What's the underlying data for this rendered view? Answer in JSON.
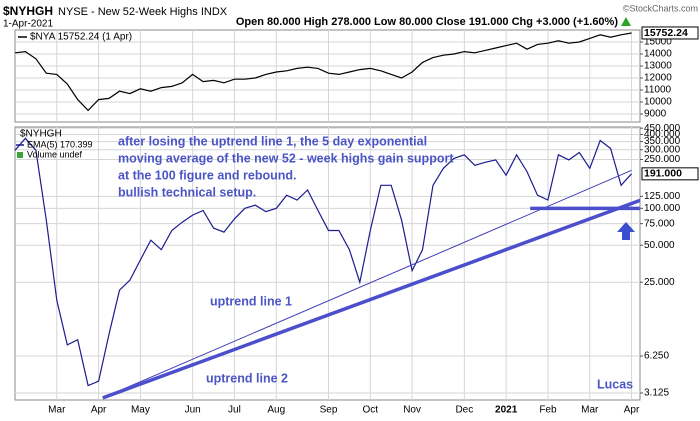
{
  "header": {
    "symbol": "$NYHGH",
    "description": "NYSE - New 52-Week Highs INDX",
    "date": "1-Apr-2021",
    "quote": "Open 80.000 High 278.000 Low 80.000 Close 191.000 Chg +3.000 (+1.60%)",
    "credit": "©StockCharts.com"
  },
  "chart_data": [
    {
      "type": "line",
      "series": [
        {
          "name": "$NYA 15752.24 (1 Apr)",
          "color": "#000000",
          "values": [
            14100,
            14200,
            13600,
            12400,
            12300,
            11500,
            10200,
            9300,
            10200,
            10300,
            10900,
            10700,
            11100,
            10900,
            11200,
            11300,
            11600,
            12300,
            11700,
            11800,
            11600,
            11900,
            11900,
            12000,
            12300,
            12500,
            12600,
            12800,
            12900,
            12800,
            12400,
            12300,
            12500,
            12700,
            12800,
            12600,
            12300,
            12000,
            12500,
            13300,
            13700,
            13900,
            14000,
            14200,
            14100,
            14300,
            14500,
            14700,
            14900,
            14400,
            14800,
            14900,
            15100,
            14900,
            15000,
            15300,
            15600,
            15400,
            15600,
            15752.24
          ]
        }
      ],
      "ylim": [
        8330,
        16000
      ],
      "yticks": [
        9000,
        10000,
        11000,
        12000,
        13000,
        14000,
        15000
      ],
      "grid": true
    },
    {
      "type": "line",
      "log_scale": true,
      "categories": [
        null,
        null,
        null,
        null,
        "Mar",
        null,
        null,
        null,
        "Apr",
        null,
        null,
        null,
        "May",
        null,
        null,
        null,
        null,
        "Jun",
        null,
        null,
        null,
        "Jul",
        null,
        null,
        null,
        "Aug",
        null,
        null,
        null,
        null,
        "Sep",
        null,
        null,
        null,
        "Oct",
        null,
        null,
        null,
        "Nov",
        null,
        null,
        null,
        null,
        "Dec",
        null,
        null,
        null,
        "2021",
        null,
        null,
        null,
        "Feb",
        null,
        null,
        null,
        "Mar",
        null,
        null,
        null,
        "Apr"
      ],
      "series": [
        {
          "name": "$NYHGH",
          "color": "#1c1c8f",
          "last_value_label": "191.000",
          "values": [
            297,
            372,
            297,
            80,
            17.8,
            7.7,
            8.5,
            3.6,
            3.9,
            9.4,
            21.5,
            26,
            38,
            55,
            46,
            66,
            77,
            88,
            96,
            69,
            64,
            82,
            100,
            106,
            94,
            100,
            128,
            117,
            141,
            96,
            66,
            66,
            46,
            25,
            66,
            154,
            154,
            80,
            31,
            46,
            154,
            212,
            255,
            273,
            224,
            237,
            248,
            186,
            273,
            199,
            128,
            117,
            273,
            248,
            285,
            212,
            357,
            307,
            154,
            191
          ]
        }
      ],
      "legend_notes": [
        "EMA(5) 170.399",
        "Volume undef"
      ],
      "ylim": [
        2.74,
        460
      ],
      "yticks": [
        3.125,
        {
          "value": 6.25,
          "label": "6.250"
        },
        {
          "value": 25,
          "label": "25.000"
        },
        {
          "value": 50,
          "label": "50.000"
        },
        {
          "value": 75,
          "label": "75.000"
        },
        {
          "value": 100,
          "label": "100.000"
        },
        {
          "value": 125,
          "label": "125.000"
        },
        {
          "value": 250,
          "label": "250.000"
        },
        {
          "value": 300,
          "label": "300.000"
        },
        {
          "value": 350,
          "label": "350.000"
        },
        {
          "value": 400,
          "label": "400.000"
        },
        {
          "value": 450,
          "label": "450.000"
        }
      ],
      "grid": true,
      "trendlines": [
        {
          "label": "uptrend line 1",
          "style": "thin",
          "color": "#3f3fb8",
          "from": [
            8.4,
            2.85
          ],
          "to": [
            59,
            204
          ]
        },
        {
          "label": "uptrend line 2",
          "style": "thick",
          "color": "#4b4fcc",
          "from": [
            8.4,
            2.85
          ],
          "to": [
            59.8,
            116
          ]
        },
        {
          "style": "thick",
          "color": "#4b4fcc",
          "from": [
            49.3,
            100
          ],
          "to": [
            59.8,
            100
          ]
        }
      ],
      "annotations": [
        "after losing the uptrend line 1, the 5 day exponential",
        "moving average of the new 52 - week highs gain support",
        "at the 100 figure and rebound.",
        "bullish technical setup."
      ],
      "signature": "Lucas"
    }
  ]
}
